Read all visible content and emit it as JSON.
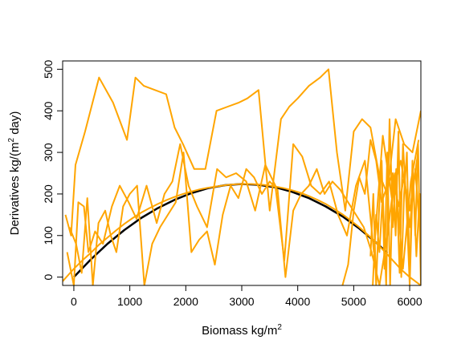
{
  "chart_data": {
    "type": "line",
    "xlabel_prefix": "Biomass kg",
    "xlabel_slash": "/",
    "xlabel_unit": "m",
    "xlabel_exp": "2",
    "ylabel_prefix": "Derivatives kg",
    "ylabel_slash": "/",
    "ylabel_open": "(",
    "ylabel_unit": "m",
    "ylabel_exp": "2",
    "ylabel_tail": " day)",
    "xlim": [
      -200,
      6200
    ],
    "ylim": [
      -20,
      520
    ],
    "x_ticks": [
      0,
      1000,
      2000,
      3000,
      4000,
      5000,
      6000
    ],
    "x_tick_labels": [
      "0",
      "1000",
      "2000",
      "3000",
      "4000",
      "5000",
      "6000"
    ],
    "y_ticks": [
      0,
      100,
      200,
      300,
      400,
      500
    ],
    "y_tick_labels": [
      "0",
      "100",
      "200",
      "300",
      "400",
      "500"
    ],
    "grid": false,
    "curve_color": "#000000",
    "trace_color": "#FFA500",
    "series": [
      {
        "style": "curve",
        "x": [
          0,
          300,
          600,
          900,
          1200,
          1500,
          1800,
          2100,
          2400,
          2700,
          3000,
          3300,
          3600,
          3900,
          4200,
          4500,
          4800,
          5100,
          5400,
          5600
        ],
        "y": [
          0,
          42,
          80,
          113,
          142,
          166,
          186,
          202,
          214,
          221,
          224,
          222,
          216,
          205,
          190,
          170,
          146,
          117,
          83,
          58
        ]
      },
      {
        "style": "trace",
        "x": [
          -200,
          -100,
          0,
          150,
          300,
          450,
          600,
          750,
          900,
          1050,
          1200,
          1350,
          1500,
          1650,
          1800,
          1950,
          2100,
          2250,
          2400,
          2550,
          2700,
          2850,
          3000,
          3150,
          3300,
          3450,
          3600,
          3750,
          3900,
          4050,
          4200,
          4350,
          4500,
          4650,
          4800,
          4950,
          5100,
          5250,
          5400,
          5550,
          5700,
          5850,
          6000,
          6150,
          6200
        ],
        "y": [
          -10,
          5,
          20,
          40,
          58,
          78,
          95,
          112,
          128,
          142,
          155,
          166,
          176,
          185,
          193,
          200,
          206,
          211,
          215,
          218,
          221,
          223,
          224,
          224,
          223,
          221,
          218,
          214,
          209,
          203,
          195,
          186,
          176,
          164,
          151,
          136,
          120,
          102,
          83,
          62,
          40,
          18,
          0,
          -15,
          -20
        ]
      },
      {
        "style": "trace",
        "x": [
          -150,
          -50,
          30,
          200,
          450,
          700,
          950,
          1100,
          1250,
          1450,
          1650,
          1800,
          1950,
          2150,
          2350,
          2550,
          2750,
          2950,
          3100,
          3300,
          3500,
          3700,
          3850,
          4000,
          4200,
          4400,
          4550,
          4700,
          4850,
          5000,
          5150,
          5300,
          5450,
          5600,
          5750,
          5900,
          6050,
          6200
        ],
        "y": [
          150,
          100,
          270,
          350,
          480,
          420,
          330,
          480,
          460,
          450,
          440,
          360,
          320,
          260,
          260,
          400,
          410,
          420,
          430,
          450,
          160,
          380,
          410,
          430,
          460,
          480,
          500,
          300,
          160,
          350,
          380,
          360,
          250,
          200,
          380,
          320,
          300,
          400
        ]
      },
      {
        "style": "trace",
        "x": [
          -120,
          0,
          80,
          180,
          260,
          380,
          520,
          680,
          820,
          980,
          1120,
          1300,
          1480,
          1620,
          1760,
          1900,
          2050,
          2200,
          2380,
          2560,
          2720,
          2900,
          3080,
          3240,
          3420,
          3600,
          3760,
          3920,
          4080,
          4240,
          4400,
          4560,
          4720,
          4880,
          5040,
          5200,
          5360,
          5520,
          5680,
          5840,
          6000,
          6150
        ],
        "y": [
          60,
          -20,
          180,
          170,
          60,
          110,
          80,
          170,
          220,
          180,
          140,
          220,
          130,
          200,
          230,
          320,
          220,
          170,
          120,
          260,
          240,
          250,
          230,
          160,
          270,
          220,
          40,
          320,
          290,
          220,
          200,
          230,
          150,
          100,
          220,
          280,
          60,
          340,
          190,
          280,
          160,
          300
        ]
      },
      {
        "style": "trace",
        "x": [
          -80,
          40,
          140,
          240,
          340,
          440,
          560,
          660,
          760,
          880,
          1000,
          1130,
          1260,
          1400,
          1540,
          1680,
          1820,
          1960,
          2100,
          2240,
          2380,
          2520,
          2660,
          2800,
          2940,
          3080,
          3220,
          3360,
          3500,
          3640,
          3780,
          3920,
          4060,
          4200,
          4340,
          4480,
          4620,
          4760,
          4900,
          5040,
          5180,
          5320,
          5460,
          5600,
          5740,
          5880,
          6020,
          6160
        ],
        "y": [
          120,
          80,
          10,
          190,
          -20,
          130,
          160,
          100,
          60,
          170,
          200,
          220,
          -20,
          80,
          120,
          150,
          180,
          300,
          60,
          90,
          110,
          30,
          150,
          220,
          190,
          260,
          240,
          200,
          230,
          210,
          0,
          160,
          200,
          220,
          260,
          200,
          230,
          210,
          180,
          150,
          120,
          60,
          -20,
          100,
          250,
          20,
          230,
          330
        ]
      },
      {
        "style": "trace",
        "x": [
          5300,
          5350,
          5400,
          5450,
          5500,
          5550,
          5600,
          5650,
          5700,
          5750,
          5800,
          5850,
          5900,
          5950,
          6000,
          6050,
          6100,
          6150,
          6200,
          6180,
          6120,
          6060,
          6000,
          5940,
          5880,
          5820,
          5760,
          5700,
          5640,
          5580,
          5520,
          5460,
          5400,
          5340
        ],
        "y": [
          50,
          200,
          -20,
          150,
          280,
          20,
          300,
          -20,
          250,
          100,
          350,
          0,
          200,
          300,
          -20,
          280,
          100,
          320,
          -20,
          200,
          50,
          250,
          -20,
          180,
          320,
          10,
          260,
          120,
          380,
          -20,
          200,
          60,
          150,
          -20
        ]
      },
      {
        "style": "trace",
        "x": [
          4800,
          4900,
          5000,
          5100,
          5200,
          5300,
          5400,
          5500,
          5600,
          5700,
          5800,
          5900,
          6000,
          6100,
          6200
        ],
        "y": [
          -20,
          30,
          160,
          240,
          200,
          330,
          280,
          180,
          220,
          250,
          170,
          240,
          120,
          260,
          80
        ]
      }
    ]
  }
}
